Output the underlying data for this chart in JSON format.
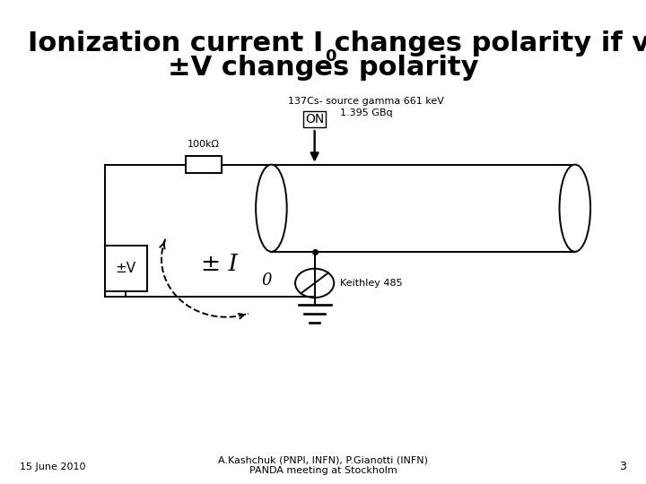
{
  "title_line1": "Ionization current I",
  "title_sub0": "0",
  "title_line1_rest": " changes polarity if voltage",
  "title_line2": "±V changes polarity",
  "source_label_line1": "137Cs- source gamma 661 keV",
  "source_label_line2": "1.395 GBq",
  "on_label": "ON",
  "resistor_label": "100kΩ",
  "keithley_label": "Keithley 485",
  "current_label": "± I",
  "current_sub": "0",
  "voltage_label": "±V",
  "date_label": "15 June 2010",
  "footer_line1": "A.Kashchuk (PNPI, INFN), P.Gianotti (INFN)",
  "footer_line2": "PANDA meeting at Stockholm",
  "page_number": "3",
  "bg_color": "#ffffff",
  "lc": "#000000",
  "gray": "#888888",
  "title_fontsize": 22,
  "body_fontsize": 9,
  "footer_fontsize": 8,
  "lw": 1.4
}
